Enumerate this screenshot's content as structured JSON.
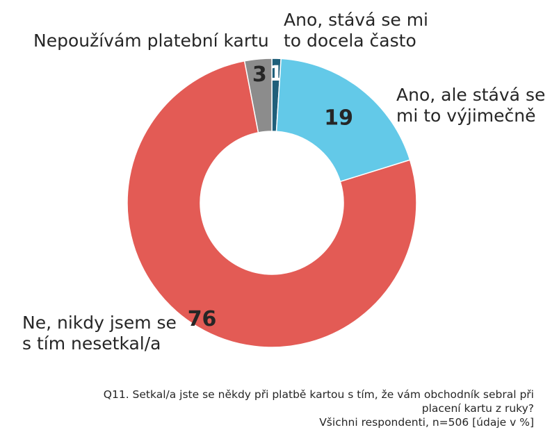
{
  "chart_data": {
    "type": "pie",
    "donut": true,
    "categories": [
      "Ano, stává se mi to docela často",
      "Ano, ale stává se mi to výjimečně",
      "Ne, nikdy jsem se s tím nesetkal/a",
      "Nepoužívám platební kartu"
    ],
    "values": [
      1,
      19,
      76,
      3
    ],
    "data_labels": [
      "1",
      "19",
      "76",
      "3"
    ],
    "colors": [
      "#1F5F7A",
      "#63C9E8",
      "#E35B55",
      "#8C8C8C"
    ],
    "label_colors": [
      "#FFFFFF",
      "#262626",
      "#262626",
      "#262626"
    ],
    "legend": "none"
  },
  "labels": {
    "docela_casto": "Ano, stává se mi to docela často",
    "vyjimecne": "Ano, ale stává se mi to výjimečně",
    "nikdy": "Ne, nikdy jsem se s tím nesetkal/a",
    "nepouzivam": "Nepoužívám platební kartu"
  },
  "footnote": {
    "line1": "Q11. Setkal/a jste se někdy při platbě kartou s tím, že vám obchodník sebral při",
    "line2": "placení kartu z ruky?",
    "line3": "Všichni respondenti, n=506 [údaje v %]"
  }
}
